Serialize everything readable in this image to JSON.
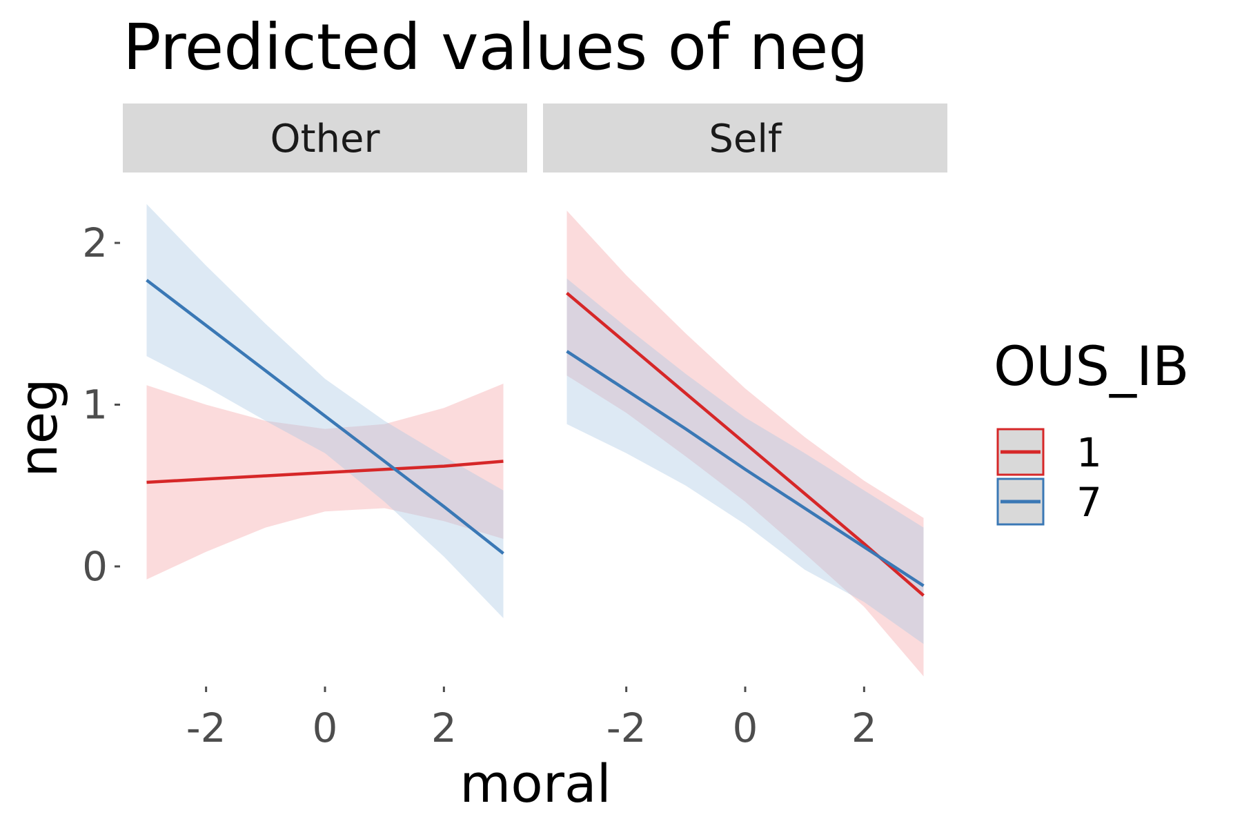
{
  "chart_data": {
    "type": "line",
    "title": "Predicted values of neg",
    "xlabel": "moral",
    "ylabel": "neg",
    "x_ticks": [
      -2,
      0,
      2
    ],
    "x_tick_labels": [
      "-2",
      "0",
      "2"
    ],
    "y_ticks": [
      0,
      1,
      2
    ],
    "y_tick_labels": [
      "0",
      "1",
      "2"
    ],
    "xlim": [
      -3.4,
      3.4
    ],
    "ylim": [
      -0.7,
      2.35
    ],
    "grid": false,
    "legend": {
      "title": "OUS_IB",
      "position": "right",
      "entries": [
        {
          "label": "1",
          "color": "#d62728"
        },
        {
          "label": "7",
          "color": "#3a78b5"
        }
      ]
    },
    "panels": [
      {
        "label": "Other",
        "series": [
          {
            "legend_key": "1",
            "color": "#d62728",
            "band_color": "#f4a5a8",
            "x": [
              -3,
              -2,
              -1,
              0,
              1,
              2,
              3
            ],
            "fit": [
              0.52,
              0.54,
              0.56,
              0.58,
              0.6,
              0.62,
              0.65
            ],
            "lower": [
              -0.08,
              0.09,
              0.24,
              0.34,
              0.36,
              0.28,
              0.17
            ],
            "upper": [
              1.12,
              1.0,
              0.9,
              0.85,
              0.88,
              0.98,
              1.13
            ]
          },
          {
            "legend_key": "7",
            "color": "#3a78b5",
            "band_color": "#a9c8e3",
            "x": [
              -3,
              -2,
              -1,
              0,
              1,
              2,
              3
            ],
            "fit": [
              1.77,
              1.49,
              1.21,
              0.93,
              0.65,
              0.37,
              0.08
            ],
            "lower": [
              1.3,
              1.11,
              0.9,
              0.7,
              0.4,
              0.06,
              -0.32
            ],
            "upper": [
              2.24,
              1.86,
              1.5,
              1.16,
              0.9,
              0.68,
              0.47
            ]
          }
        ]
      },
      {
        "label": "Self",
        "series": [
          {
            "legend_key": "1",
            "color": "#d62728",
            "band_color": "#f4a5a8",
            "x": [
              -3,
              -2,
              -1,
              0,
              1,
              2,
              3
            ],
            "fit": [
              1.69,
              1.38,
              1.07,
              0.76,
              0.45,
              0.14,
              -0.18
            ],
            "lower": [
              1.18,
              0.95,
              0.68,
              0.4,
              0.08,
              -0.25,
              -0.68
            ],
            "upper": [
              2.2,
              1.8,
              1.44,
              1.1,
              0.8,
              0.53,
              0.3
            ]
          },
          {
            "legend_key": "7",
            "color": "#3a78b5",
            "band_color": "#a9c8e3",
            "x": [
              -3,
              -2,
              -1,
              0,
              1,
              2,
              3
            ],
            "fit": [
              1.33,
              1.09,
              0.85,
              0.6,
              0.36,
              0.12,
              -0.12
            ],
            "lower": [
              0.88,
              0.7,
              0.5,
              0.26,
              -0.02,
              -0.22,
              -0.48
            ],
            "upper": [
              1.78,
              1.48,
              1.19,
              0.92,
              0.7,
              0.47,
              0.24
            ]
          }
        ]
      }
    ]
  }
}
